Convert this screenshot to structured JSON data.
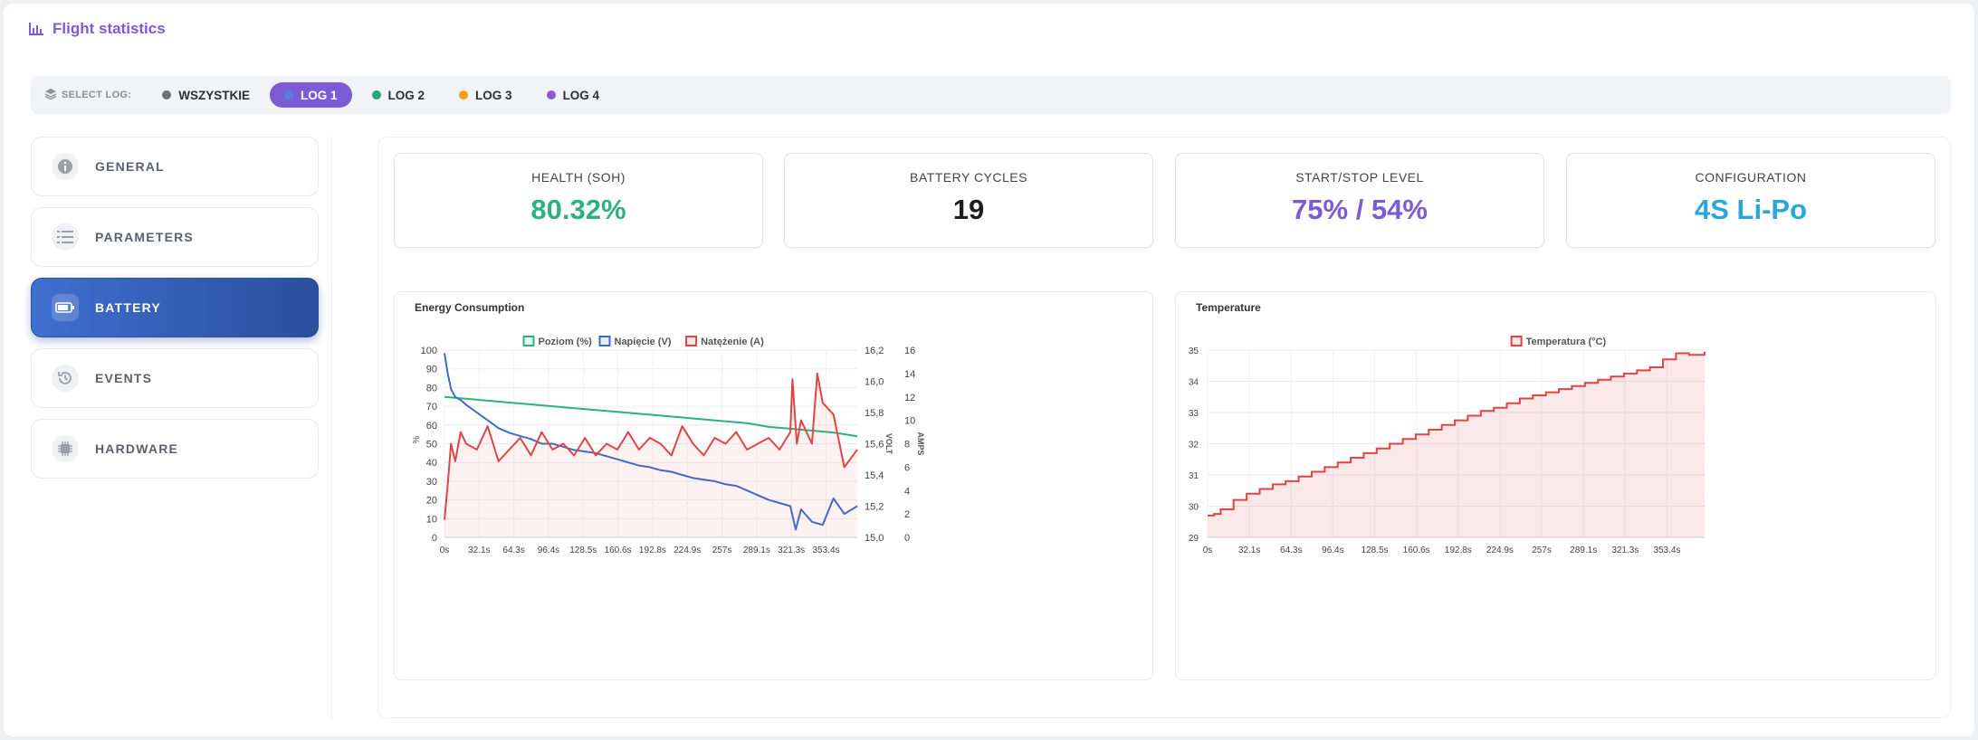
{
  "header": {
    "title": "Flight statistics",
    "icon": "bar-chart-icon"
  },
  "logbar": {
    "label": "SELECT LOG:",
    "logs": [
      {
        "label": "WSZYSTKIE",
        "color": "#6b7079",
        "active": false
      },
      {
        "label": "LOG 1",
        "color": "#5a7dde",
        "active": true
      },
      {
        "label": "LOG 2",
        "color": "#26a877",
        "active": false
      },
      {
        "label": "LOG 3",
        "color": "#f0a01a",
        "active": false
      },
      {
        "label": "LOG 4",
        "color": "#8a5bd9",
        "active": false
      }
    ]
  },
  "sidebar": {
    "items": [
      {
        "label": "GENERAL",
        "icon": "info-icon",
        "active": false
      },
      {
        "label": "PARAMETERS",
        "icon": "list-icon",
        "active": false
      },
      {
        "label": "BATTERY",
        "icon": "battery-icon",
        "active": true
      },
      {
        "label": "EVENTS",
        "icon": "history-icon",
        "active": false
      },
      {
        "label": "HARDWARE",
        "icon": "chip-icon",
        "active": false
      }
    ]
  },
  "stats": [
    {
      "label": "HEALTH (SOH)",
      "value": "80.32%",
      "color": "#2bb27e"
    },
    {
      "label": "BATTERY CYCLES",
      "value": "19",
      "color": "#1e1e1e"
    },
    {
      "label": "START/STOP LEVEL",
      "value": "75% / 54%",
      "color": "#7b5bd6"
    },
    {
      "label": "CONFIGURATION",
      "value": "4S Li-Po",
      "color": "#2aa6d8"
    }
  ],
  "chart_data": [
    {
      "type": "line",
      "title": "Energy Consumption",
      "x_ticks": [
        "0s",
        "32.1s",
        "64.3s",
        "96.4s",
        "128.5s",
        "160.6s",
        "192.8s",
        "224.9s",
        "257s",
        "289.1s",
        "321.3s",
        "353.4s"
      ],
      "x_range": [
        0,
        382
      ],
      "axes": {
        "left": {
          "label": "%",
          "range": [
            0,
            100
          ],
          "ticks": [
            "0",
            "10",
            "20",
            "30",
            "40",
            "50",
            "60",
            "70",
            "80",
            "90",
            "100"
          ]
        },
        "volt": {
          "label": "VOLT",
          "range": [
            15.0,
            16.2
          ],
          "ticks": [
            "15,0",
            "15,2",
            "15,4",
            "15,6",
            "15,8",
            "16,0",
            "16,2"
          ]
        },
        "amps": {
          "label": "AMPS",
          "range": [
            0,
            16
          ],
          "ticks": [
            "0",
            "2",
            "4",
            "6",
            "8",
            "10",
            "12",
            "14",
            "16"
          ]
        }
      },
      "legend_position": "top-center",
      "grid": true,
      "series": [
        {
          "name": "Poziom (%)",
          "axis": "left",
          "color": "#2bb27e",
          "x": [
            0,
            20,
            40,
            60,
            80,
            100,
            120,
            140,
            160,
            180,
            200,
            220,
            240,
            260,
            280,
            300,
            320,
            340,
            360,
            382
          ],
          "y": [
            75,
            74,
            73,
            72,
            71,
            70,
            69,
            68,
            67,
            66,
            65,
            64,
            63,
            62,
            61,
            59,
            58,
            57,
            56,
            54
          ]
        },
        {
          "name": "Napięcie (V)",
          "axis": "volt",
          "color": "#3b6cc8",
          "x": [
            0,
            3,
            6,
            10,
            15,
            20,
            30,
            40,
            50,
            60,
            70,
            80,
            90,
            100,
            110,
            120,
            130,
            140,
            150,
            160,
            170,
            180,
            190,
            200,
            210,
            220,
            230,
            240,
            250,
            260,
            270,
            280,
            290,
            300,
            310,
            320,
            325,
            330,
            340,
            350,
            360,
            370,
            382
          ],
          "y": [
            16.18,
            16.05,
            15.95,
            15.9,
            15.88,
            15.85,
            15.8,
            15.75,
            15.7,
            15.67,
            15.65,
            15.63,
            15.6,
            15.6,
            15.58,
            15.56,
            15.55,
            15.54,
            15.52,
            15.5,
            15.48,
            15.46,
            15.45,
            15.43,
            15.42,
            15.4,
            15.38,
            15.37,
            15.36,
            15.34,
            15.33,
            15.3,
            15.27,
            15.24,
            15.22,
            15.2,
            15.05,
            15.18,
            15.1,
            15.08,
            15.25,
            15.15,
            15.2
          ]
        },
        {
          "name": "Natężenie (A)",
          "axis": "amps",
          "color": "#e04444",
          "x": [
            0,
            3,
            6,
            10,
            15,
            20,
            30,
            40,
            50,
            60,
            70,
            80,
            90,
            100,
            110,
            120,
            130,
            140,
            150,
            160,
            170,
            180,
            190,
            200,
            210,
            220,
            230,
            240,
            250,
            260,
            270,
            280,
            290,
            300,
            310,
            320,
            322,
            326,
            330,
            340,
            345,
            350,
            360,
            370,
            382
          ],
          "y": [
            1.5,
            4.5,
            8,
            6.5,
            9,
            8,
            7.5,
            9.5,
            6.5,
            7.5,
            8.5,
            7,
            9,
            7.5,
            8,
            7,
            8.5,
            7,
            8,
            7.5,
            9,
            7.5,
            8.5,
            8,
            7,
            9.5,
            8,
            7,
            8.5,
            8,
            9,
            7.5,
            8,
            8.5,
            7.5,
            9,
            13.5,
            8,
            10,
            8,
            14,
            11.5,
            10.5,
            6,
            7.5
          ]
        }
      ]
    },
    {
      "type": "area",
      "title": "Temperature",
      "x_ticks": [
        "0s",
        "32.1s",
        "64.3s",
        "96.4s",
        "128.5s",
        "160.6s",
        "192.8s",
        "224.9s",
        "257s",
        "289.1s",
        "321.3s",
        "353.4s"
      ],
      "x_range": [
        0,
        382
      ],
      "y_range": [
        29,
        35
      ],
      "y_ticks": [
        "29",
        "30",
        "31",
        "32",
        "33",
        "34",
        "35"
      ],
      "legend_position": "top-center",
      "grid": true,
      "series": [
        {
          "name": "Temperatura (°C)",
          "color": "#e04444",
          "x": [
            0,
            5,
            10,
            20,
            30,
            40,
            50,
            60,
            70,
            80,
            90,
            100,
            110,
            120,
            130,
            140,
            150,
            160,
            170,
            180,
            190,
            200,
            210,
            220,
            230,
            240,
            250,
            260,
            270,
            280,
            290,
            300,
            310,
            320,
            330,
            340,
            350,
            360,
            370,
            382
          ],
          "y": [
            29.7,
            29.75,
            29.9,
            30.2,
            30.4,
            30.55,
            30.7,
            30.8,
            30.95,
            31.1,
            31.25,
            31.4,
            31.55,
            31.7,
            31.85,
            32.0,
            32.15,
            32.3,
            32.45,
            32.6,
            32.75,
            32.9,
            33.05,
            33.15,
            33.3,
            33.45,
            33.55,
            33.65,
            33.75,
            33.85,
            33.95,
            34.05,
            34.15,
            34.25,
            34.35,
            34.45,
            34.7,
            34.9,
            34.85,
            34.95
          ]
        }
      ]
    }
  ]
}
